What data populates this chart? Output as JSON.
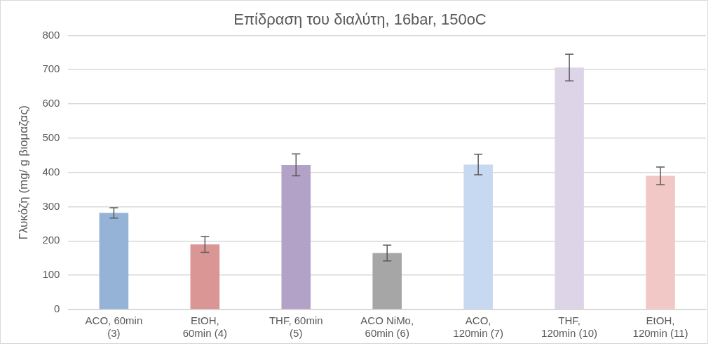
{
  "chart_data": {
    "type": "bar",
    "title": "Επίδραση του διαλύτη, 16bar, 150oC",
    "ylabel": "Γλυκόζη (mg/ g βιομαζας)",
    "categories": [
      "ACO, 60min (3)",
      "EtOH, 60min (4)",
      "THF, 60min (5)",
      "ACO NiMo, 60min (6)",
      "ACO, 120min (7)",
      "THF, 120min (10)",
      "EtOH, 120min (11)"
    ],
    "values": [
      282,
      190,
      422,
      165,
      423,
      706,
      390
    ],
    "errors": [
      15,
      23,
      32,
      23,
      30,
      39,
      26
    ],
    "colors": [
      "#95b3d7",
      "#d99694",
      "#b3a2c7",
      "#a6a6a6",
      "#c6d9f0",
      "#ddd4e8",
      "#f2c8c7"
    ],
    "ylim": [
      0,
      800
    ],
    "yticks": [
      0,
      100,
      200,
      300,
      400,
      500,
      600,
      700,
      800
    ],
    "grid": "y",
    "legend": false
  }
}
